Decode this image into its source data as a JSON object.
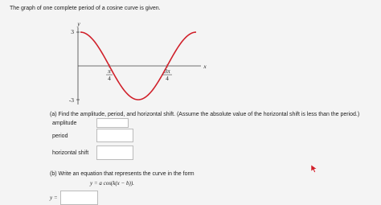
{
  "question": "The graph of one complete period of a cosine curve is given.",
  "graph": {
    "y_label": "y",
    "x_label": "x",
    "y_max_label": "3",
    "y_min_label": "-3",
    "x_ticks": [
      {
        "numerator": "π",
        "denominator": "4"
      },
      {
        "numerator": "3π",
        "denominator": "4"
      }
    ]
  },
  "part_a": {
    "prompt": "(a) Find the amplitude, period, and horizontal shift. (Assume the absolute value of the horizontal shift is less than the period.)",
    "fields": [
      "amplitude",
      "period",
      "horizontal shift"
    ]
  },
  "part_b": {
    "prompt": "(b) Write an equation that represents the curve in the form",
    "form": "y = a cos(k(x − b)).",
    "answer_label": "y ="
  }
}
